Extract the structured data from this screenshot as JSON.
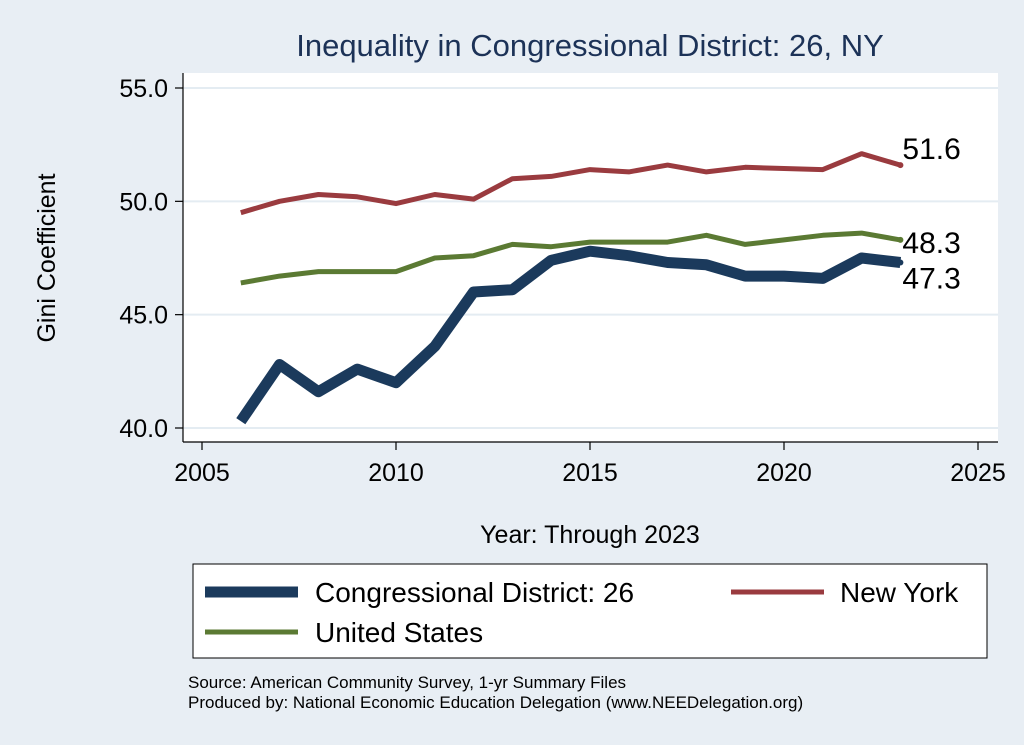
{
  "chart_data": {
    "type": "line",
    "title": "Inequality in Congressional District:  26, NY",
    "xlabel": "Year: Through 2023",
    "ylabel": "Gini Coefficient",
    "xlim": [
      2005,
      2025
    ],
    "ylim": [
      40,
      55
    ],
    "x_ticks": [
      "2005",
      "2010",
      "2015",
      "2020",
      "2025"
    ],
    "y_ticks": [
      "40.0",
      "45.0",
      "50.0",
      "55.0"
    ],
    "x": [
      2006,
      2007,
      2008,
      2009,
      2010,
      2011,
      2012,
      2013,
      2014,
      2015,
      2016,
      2017,
      2018,
      2019,
      2020,
      2021,
      2022,
      2023
    ],
    "series": [
      {
        "name": "Congressional District:  26",
        "color": "#1b3a5c",
        "values": [
          40.3,
          42.8,
          41.6,
          42.6,
          42.0,
          43.6,
          46.0,
          46.1,
          47.4,
          47.8,
          47.6,
          47.3,
          47.2,
          46.7,
          46.7,
          46.6,
          47.5,
          47.3
        ],
        "end_label": "47.3"
      },
      {
        "name": "New York",
        "color": "#9a3b3f",
        "values": [
          49.5,
          50.0,
          50.3,
          50.2,
          49.9,
          50.3,
          50.1,
          51.0,
          51.1,
          51.4,
          51.3,
          51.6,
          51.3,
          51.5,
          51.45,
          51.4,
          52.1,
          51.6
        ],
        "end_label": "51.6"
      },
      {
        "name": "United States",
        "color": "#5b7a33",
        "values": [
          46.4,
          46.7,
          46.9,
          46.9,
          46.9,
          47.5,
          47.6,
          48.1,
          48.0,
          48.2,
          48.2,
          48.2,
          48.5,
          48.1,
          48.3,
          48.5,
          48.6,
          48.3
        ],
        "end_label": "48.3"
      }
    ],
    "legend": {
      "position": "bottom",
      "items": [
        "Congressional District:  26",
        "New York",
        "United States"
      ]
    },
    "source_line_1": "Source: American Community Survey, 1-yr Summary Files",
    "source_line_2": "Produced by: National Economic Education Delegation (www.NEEDelegation.org)"
  }
}
